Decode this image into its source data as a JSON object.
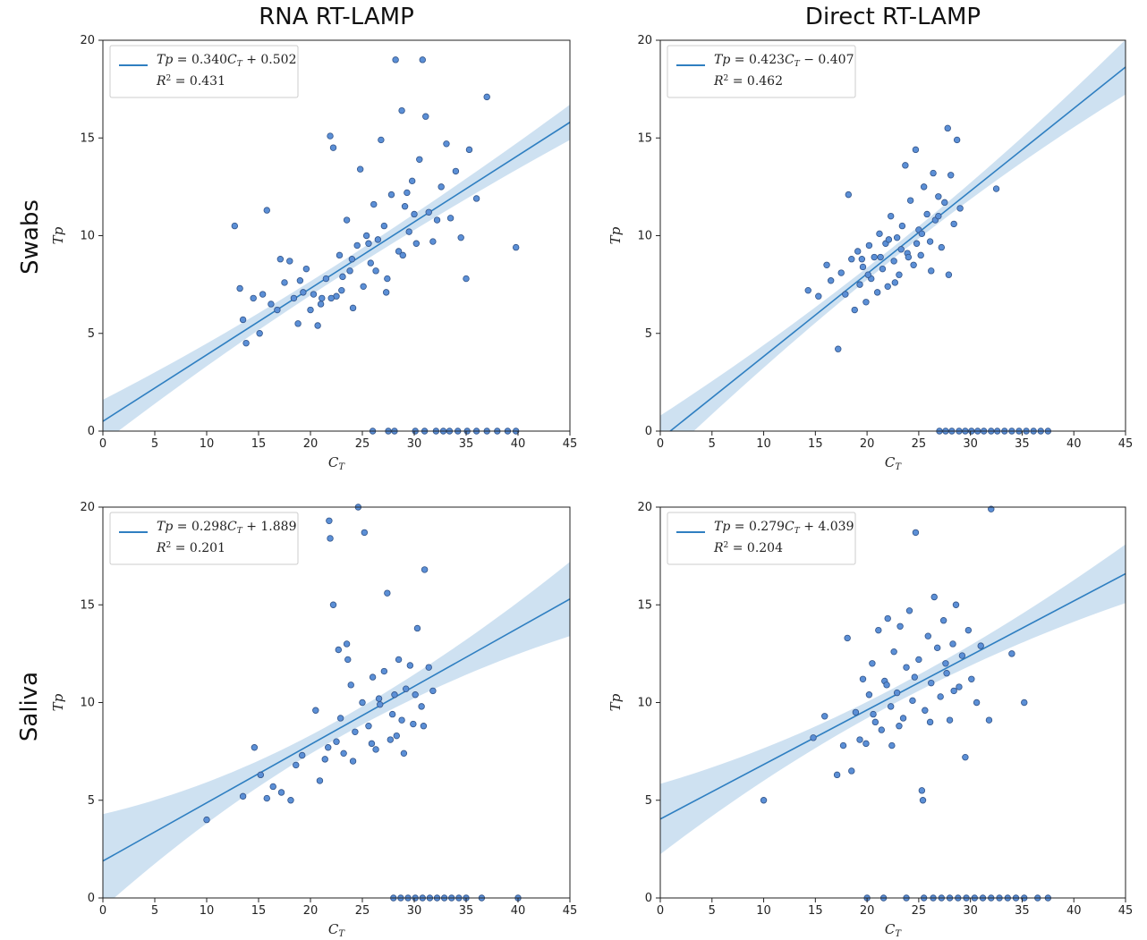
{
  "column_titles": [
    "RNA RT-LAMP",
    "Direct RT-LAMP"
  ],
  "row_titles": [
    "Swabs",
    "Saliva"
  ],
  "colors": {
    "point_fill": "#5b8fd6",
    "point_edge": "#33558a",
    "line": "#2f7fc1",
    "band": "#c6dcef"
  },
  "chart_data": [
    {
      "type": "scatter",
      "panel": "swabs-rna",
      "xlabel": "C_T",
      "ylabel": "Tp",
      "xlim": [
        0,
        45
      ],
      "ylim": [
        0,
        20
      ],
      "xticks": [
        0,
        5,
        10,
        15,
        20,
        25,
        30,
        35,
        40,
        45
      ],
      "yticks": [
        0,
        5,
        10,
        15,
        20
      ],
      "legend": {
        "equation": "Tp = 0.340C_T + 0.502",
        "r2": "R² = 0.431",
        "placement": "top-left"
      },
      "fit": {
        "slope": 0.34,
        "intercept": 0.502
      },
      "ci_halfwidth": {
        "left": 1.1,
        "middle": 0.35,
        "right": 0.9
      },
      "points": [
        [
          12.7,
          10.5
        ],
        [
          13.2,
          7.3
        ],
        [
          13.5,
          5.7
        ],
        [
          13.8,
          4.5
        ],
        [
          14.5,
          6.8
        ],
        [
          15.1,
          5.0
        ],
        [
          15.4,
          7.0
        ],
        [
          15.8,
          11.3
        ],
        [
          16.2,
          6.5
        ],
        [
          16.8,
          6.2
        ],
        [
          17.1,
          8.8
        ],
        [
          17.5,
          7.6
        ],
        [
          18.0,
          8.7
        ],
        [
          18.4,
          6.8
        ],
        [
          18.8,
          5.5
        ],
        [
          19.3,
          7.1
        ],
        [
          19.6,
          8.3
        ],
        [
          20.0,
          6.2
        ],
        [
          20.3,
          7.0
        ],
        [
          20.7,
          5.4
        ],
        [
          21.1,
          6.8
        ],
        [
          21.5,
          7.8
        ],
        [
          21.9,
          15.1
        ],
        [
          22.2,
          14.5
        ],
        [
          22.5,
          6.9
        ],
        [
          22.8,
          9.0
        ],
        [
          23.1,
          7.9
        ],
        [
          23.5,
          10.8
        ],
        [
          23.8,
          8.2
        ],
        [
          24.1,
          6.3
        ],
        [
          24.5,
          9.5
        ],
        [
          24.8,
          13.4
        ],
        [
          25.1,
          7.4
        ],
        [
          25.4,
          10.0
        ],
        [
          25.8,
          8.6
        ],
        [
          26.1,
          11.6
        ],
        [
          26.5,
          9.8
        ],
        [
          26.8,
          14.9
        ],
        [
          27.1,
          10.5
        ],
        [
          27.4,
          7.8
        ],
        [
          27.8,
          12.1
        ],
        [
          28.2,
          19.0
        ],
        [
          28.5,
          9.2
        ],
        [
          28.8,
          16.4
        ],
        [
          29.1,
          11.5
        ],
        [
          29.5,
          10.2
        ],
        [
          29.8,
          12.8
        ],
        [
          30.2,
          9.6
        ],
        [
          30.5,
          13.9
        ],
        [
          30.8,
          19.0
        ],
        [
          31.1,
          16.1
        ],
        [
          31.4,
          11.2
        ],
        [
          31.8,
          9.7
        ],
        [
          32.2,
          10.8
        ],
        [
          32.6,
          12.5
        ],
        [
          33.1,
          14.7
        ],
        [
          33.5,
          10.9
        ],
        [
          34.0,
          13.3
        ],
        [
          34.5,
          9.9
        ],
        [
          35.0,
          7.8
        ],
        [
          35.3,
          14.4
        ],
        [
          36.0,
          11.9
        ],
        [
          37.0,
          17.1
        ],
        [
          39.8,
          9.4
        ],
        [
          22.0,
          6.8
        ],
        [
          24.0,
          8.8
        ],
        [
          26.3,
          8.2
        ],
        [
          28.9,
          9.0
        ],
        [
          30.0,
          11.1
        ],
        [
          27.3,
          7.1
        ],
        [
          23.0,
          7.2
        ],
        [
          21.0,
          6.5
        ],
        [
          19.0,
          7.7
        ],
        [
          29.3,
          12.2
        ],
        [
          25.6,
          9.6
        ],
        [
          26.0,
          0.0
        ],
        [
          27.5,
          0.0
        ],
        [
          28.1,
          0.0
        ],
        [
          30.1,
          0.0
        ],
        [
          31.0,
          0.0
        ],
        [
          32.1,
          0.0
        ],
        [
          32.8,
          0.0
        ],
        [
          33.4,
          0.0
        ],
        [
          34.2,
          0.0
        ],
        [
          35.1,
          0.0
        ],
        [
          36.0,
          0.0
        ],
        [
          37.0,
          0.0
        ],
        [
          38.0,
          0.0
        ],
        [
          39.0,
          0.0
        ],
        [
          39.8,
          0.0
        ]
      ]
    },
    {
      "type": "scatter",
      "panel": "swabs-direct",
      "xlabel": "C_T",
      "ylabel": "Tp",
      "xlim": [
        0,
        45
      ],
      "ylim": [
        0,
        20
      ],
      "xticks": [
        0,
        5,
        10,
        15,
        20,
        25,
        30,
        35,
        40,
        45
      ],
      "yticks": [
        0,
        5,
        10,
        15,
        20
      ],
      "legend": {
        "equation": "Tp = 0.423C_T − 0.407",
        "r2": "R² = 0.462",
        "placement": "top-left"
      },
      "fit": {
        "slope": 0.423,
        "intercept": -0.407
      },
      "ci_halfwidth": {
        "left": 1.2,
        "middle": 0.3,
        "right": 1.4
      },
      "points": [
        [
          14.3,
          7.2
        ],
        [
          15.3,
          6.9
        ],
        [
          16.1,
          8.5
        ],
        [
          16.5,
          7.7
        ],
        [
          17.2,
          4.2
        ],
        [
          17.5,
          8.1
        ],
        [
          17.9,
          7.0
        ],
        [
          18.2,
          12.1
        ],
        [
          18.5,
          8.8
        ],
        [
          18.8,
          6.2
        ],
        [
          19.1,
          9.2
        ],
        [
          19.3,
          7.5
        ],
        [
          19.6,
          8.4
        ],
        [
          19.9,
          6.6
        ],
        [
          20.2,
          9.5
        ],
        [
          20.4,
          7.8
        ],
        [
          20.7,
          8.9
        ],
        [
          21.0,
          7.1
        ],
        [
          21.2,
          10.1
        ],
        [
          21.5,
          8.3
        ],
        [
          21.8,
          9.6
        ],
        [
          22.0,
          7.4
        ],
        [
          22.3,
          11.0
        ],
        [
          22.6,
          8.7
        ],
        [
          22.9,
          9.9
        ],
        [
          23.1,
          8.0
        ],
        [
          23.4,
          10.5
        ],
        [
          23.7,
          13.6
        ],
        [
          23.9,
          9.1
        ],
        [
          24.2,
          11.8
        ],
        [
          24.5,
          8.5
        ],
        [
          24.7,
          14.4
        ],
        [
          25.0,
          10.3
        ],
        [
          25.2,
          9.0
        ],
        [
          25.5,
          12.5
        ],
        [
          25.8,
          11.1
        ],
        [
          26.1,
          9.7
        ],
        [
          26.4,
          13.2
        ],
        [
          26.6,
          10.8
        ],
        [
          26.9,
          12.0
        ],
        [
          27.2,
          9.4
        ],
        [
          27.5,
          11.7
        ],
        [
          27.8,
          15.5
        ],
        [
          28.1,
          13.1
        ],
        [
          28.4,
          10.6
        ],
        [
          28.7,
          14.9
        ],
        [
          29.0,
          11.4
        ],
        [
          32.5,
          12.4
        ],
        [
          21.3,
          8.9
        ],
        [
          22.1,
          9.8
        ],
        [
          23.3,
          9.3
        ],
        [
          24.0,
          8.9
        ],
        [
          25.3,
          10.1
        ],
        [
          26.2,
          8.2
        ],
        [
          20.1,
          8.0
        ],
        [
          19.5,
          8.8
        ],
        [
          27.9,
          8.0
        ],
        [
          22.7,
          7.6
        ],
        [
          24.8,
          9.6
        ],
        [
          26.9,
          11.0
        ],
        [
          27.0,
          0.0
        ],
        [
          27.6,
          0.0
        ],
        [
          28.2,
          0.0
        ],
        [
          28.9,
          0.0
        ],
        [
          29.5,
          0.0
        ],
        [
          30.1,
          0.0
        ],
        [
          30.7,
          0.0
        ],
        [
          31.3,
          0.0
        ],
        [
          32.0,
          0.0
        ],
        [
          32.6,
          0.0
        ],
        [
          33.3,
          0.0
        ],
        [
          34.0,
          0.0
        ],
        [
          34.7,
          0.0
        ],
        [
          35.4,
          0.0
        ],
        [
          36.1,
          0.0
        ],
        [
          36.8,
          0.0
        ],
        [
          37.5,
          0.0
        ]
      ]
    },
    {
      "type": "scatter",
      "panel": "saliva-rna",
      "xlabel": "C_T",
      "ylabel": "Tp",
      "xlim": [
        0,
        45
      ],
      "ylim": [
        0,
        20
      ],
      "xticks": [
        0,
        5,
        10,
        15,
        20,
        25,
        30,
        35,
        40,
        45
      ],
      "yticks": [
        0,
        5,
        10,
        15,
        20
      ],
      "legend": {
        "equation": "Tp = 0.298C_T + 1.889",
        "r2": "R² = 0.201",
        "placement": "top-left"
      },
      "fit": {
        "slope": 0.298,
        "intercept": 1.889
      },
      "ci_halfwidth": {
        "left": 2.4,
        "middle": 0.45,
        "right": 1.9
      },
      "points": [
        [
          10.0,
          4.0
        ],
        [
          13.5,
          5.2
        ],
        [
          14.6,
          7.7
        ],
        [
          15.2,
          6.3
        ],
        [
          15.8,
          5.1
        ],
        [
          16.4,
          5.7
        ],
        [
          17.2,
          5.4
        ],
        [
          18.1,
          5.0
        ],
        [
          18.6,
          6.8
        ],
        [
          19.2,
          7.3
        ],
        [
          20.5,
          9.6
        ],
        [
          20.9,
          6.0
        ],
        [
          21.4,
          7.1
        ],
        [
          21.8,
          19.3
        ],
        [
          21.9,
          18.4
        ],
        [
          22.2,
          15.0
        ],
        [
          22.5,
          8.0
        ],
        [
          22.9,
          9.2
        ],
        [
          23.2,
          7.4
        ],
        [
          23.6,
          12.2
        ],
        [
          23.9,
          10.9
        ],
        [
          24.3,
          8.5
        ],
        [
          24.6,
          20.0
        ],
        [
          25.0,
          10.0
        ],
        [
          25.2,
          18.7
        ],
        [
          25.6,
          8.8
        ],
        [
          26.0,
          11.3
        ],
        [
          26.3,
          7.6
        ],
        [
          26.7,
          9.9
        ],
        [
          27.1,
          11.6
        ],
        [
          27.4,
          15.6
        ],
        [
          27.7,
          8.1
        ],
        [
          28.1,
          10.4
        ],
        [
          28.5,
          12.2
        ],
        [
          28.8,
          9.1
        ],
        [
          29.2,
          10.7
        ],
        [
          29.6,
          11.9
        ],
        [
          29.9,
          8.9
        ],
        [
          30.3,
          13.8
        ],
        [
          30.7,
          9.8
        ],
        [
          31.0,
          16.8
        ],
        [
          31.4,
          11.8
        ],
        [
          31.8,
          10.6
        ],
        [
          21.7,
          7.7
        ],
        [
          22.7,
          12.7
        ],
        [
          23.5,
          13.0
        ],
        [
          24.1,
          7.0
        ],
        [
          25.9,
          7.9
        ],
        [
          26.6,
          10.2
        ],
        [
          27.9,
          9.4
        ],
        [
          28.3,
          8.3
        ],
        [
          29.0,
          7.4
        ],
        [
          30.1,
          10.4
        ],
        [
          30.9,
          8.8
        ],
        [
          28.0,
          0.0
        ],
        [
          28.7,
          0.0
        ],
        [
          29.4,
          0.0
        ],
        [
          30.1,
          0.0
        ],
        [
          30.8,
          0.0
        ],
        [
          31.5,
          0.0
        ],
        [
          32.2,
          0.0
        ],
        [
          32.9,
          0.0
        ],
        [
          33.6,
          0.0
        ],
        [
          34.3,
          0.0
        ],
        [
          35.0,
          0.0
        ],
        [
          36.5,
          0.0
        ],
        [
          40.0,
          0.0
        ]
      ]
    },
    {
      "type": "scatter",
      "panel": "saliva-direct",
      "xlabel": "C_T",
      "ylabel": "Tp",
      "xlim": [
        0,
        45
      ],
      "ylim": [
        0,
        20
      ],
      "xticks": [
        0,
        5,
        10,
        15,
        20,
        25,
        30,
        35,
        40,
        45
      ],
      "yticks": [
        0,
        5,
        10,
        15,
        20
      ],
      "legend": {
        "equation": "Tp = 0.279C_T + 4.039",
        "r2": "R² = 0.204",
        "placement": "top-left"
      },
      "fit": {
        "slope": 0.279,
        "intercept": 4.039
      },
      "ci_halfwidth": {
        "left": 1.8,
        "middle": 0.4,
        "right": 1.5
      },
      "points": [
        [
          10.0,
          5.0
        ],
        [
          14.8,
          8.2
        ],
        [
          15.9,
          9.3
        ],
        [
          17.1,
          6.3
        ],
        [
          17.7,
          7.8
        ],
        [
          18.1,
          13.3
        ],
        [
          18.5,
          6.5
        ],
        [
          18.9,
          9.5
        ],
        [
          19.3,
          8.1
        ],
        [
          19.6,
          11.2
        ],
        [
          19.9,
          7.9
        ],
        [
          20.2,
          10.4
        ],
        [
          20.5,
          12.0
        ],
        [
          20.8,
          9.0
        ],
        [
          21.1,
          13.7
        ],
        [
          21.4,
          8.6
        ],
        [
          21.7,
          11.1
        ],
        [
          22.0,
          14.3
        ],
        [
          22.3,
          9.8
        ],
        [
          22.6,
          12.6
        ],
        [
          22.9,
          10.5
        ],
        [
          23.2,
          13.9
        ],
        [
          23.5,
          9.2
        ],
        [
          23.8,
          11.8
        ],
        [
          24.1,
          14.7
        ],
        [
          24.4,
          10.1
        ],
        [
          24.7,
          18.7
        ],
        [
          25.0,
          12.2
        ],
        [
          25.3,
          5.5
        ],
        [
          25.6,
          9.6
        ],
        [
          25.9,
          13.4
        ],
        [
          26.2,
          11.0
        ],
        [
          26.5,
          15.4
        ],
        [
          26.8,
          12.8
        ],
        [
          27.1,
          10.3
        ],
        [
          27.4,
          14.2
        ],
        [
          27.7,
          11.5
        ],
        [
          28.0,
          9.1
        ],
        [
          28.3,
          13.0
        ],
        [
          28.6,
          15.0
        ],
        [
          28.9,
          10.8
        ],
        [
          29.2,
          12.4
        ],
        [
          29.5,
          7.2
        ],
        [
          29.8,
          13.7
        ],
        [
          30.1,
          11.2
        ],
        [
          30.6,
          10.0
        ],
        [
          31.0,
          12.9
        ],
        [
          31.8,
          9.1
        ],
        [
          32.0,
          19.9
        ],
        [
          34.0,
          12.5
        ],
        [
          35.2,
          10.0
        ],
        [
          25.4,
          5.0
        ],
        [
          21.9,
          10.9
        ],
        [
          23.1,
          8.8
        ],
        [
          26.1,
          9.0
        ],
        [
          27.6,
          12.0
        ],
        [
          28.4,
          10.6
        ],
        [
          24.6,
          11.3
        ],
        [
          22.4,
          7.8
        ],
        [
          20.6,
          9.4
        ],
        [
          20.0,
          0.0
        ],
        [
          21.6,
          0.0
        ],
        [
          23.8,
          0.0
        ],
        [
          25.5,
          0.0
        ],
        [
          26.4,
          0.0
        ],
        [
          27.2,
          0.0
        ],
        [
          28.0,
          0.0
        ],
        [
          28.8,
          0.0
        ],
        [
          29.6,
          0.0
        ],
        [
          30.4,
          0.0
        ],
        [
          31.2,
          0.0
        ],
        [
          32.0,
          0.0
        ],
        [
          32.8,
          0.0
        ],
        [
          33.6,
          0.0
        ],
        [
          34.4,
          0.0
        ],
        [
          35.2,
          0.0
        ],
        [
          36.5,
          0.0
        ],
        [
          37.5,
          0.0
        ]
      ]
    }
  ]
}
